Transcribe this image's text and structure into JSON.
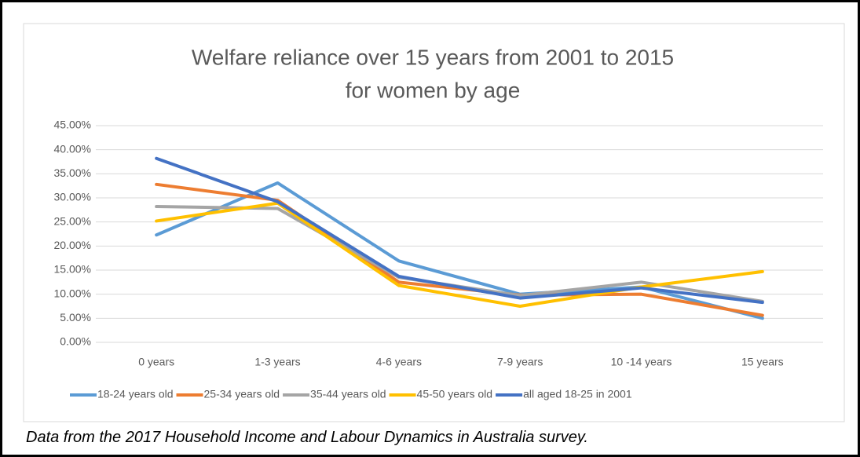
{
  "chart_data": {
    "type": "line",
    "title": [
      "Welfare reliance over 15 years from 2001 to 2015",
      "for women by age"
    ],
    "categories": [
      "0 years",
      "1-3 years",
      "4-6 years",
      "7-9 years",
      "10 -14 years",
      "15 years"
    ],
    "series": [
      {
        "name": "18-24 years old",
        "color": "#5b9bd5",
        "values": [
          22.3,
          33.1,
          16.9,
          10.0,
          11.5,
          5.0
        ]
      },
      {
        "name": "25-34 years old",
        "color": "#ed7d31",
        "values": [
          32.8,
          29.5,
          12.5,
          9.8,
          10.0,
          5.6
        ]
      },
      {
        "name": "35-44 years old",
        "color": "#a5a5a5",
        "values": [
          28.2,
          27.8,
          13.5,
          9.7,
          12.5,
          8.5
        ]
      },
      {
        "name": "45-50 years old",
        "color": "#ffc000",
        "values": [
          25.2,
          28.9,
          11.8,
          7.5,
          11.5,
          14.7
        ]
      },
      {
        "name": "all aged 18-25 in 2001",
        "color": "#4472c4",
        "values": [
          38.2,
          29.2,
          13.7,
          9.2,
          11.3,
          8.3
        ]
      }
    ],
    "ylim": [
      0,
      45
    ],
    "yticks": [
      {
        "value": 0,
        "label": "0.00%"
      },
      {
        "value": 5,
        "label": "5.00%"
      },
      {
        "value": 10,
        "label": "10.00%"
      },
      {
        "value": 15,
        "label": "15.00%"
      },
      {
        "value": 20,
        "label": "20.00%"
      },
      {
        "value": 25,
        "label": "25.00%"
      },
      {
        "value": 30,
        "label": "30.00%"
      },
      {
        "value": 35,
        "label": "35.00%"
      },
      {
        "value": 40,
        "label": "40.00%"
      },
      {
        "value": 45,
        "label": "45.00%"
      }
    ],
    "grid": true,
    "legend": "bottom"
  },
  "caption": "Data from the 2017 Household Income and Labour Dynamics in Australia survey."
}
